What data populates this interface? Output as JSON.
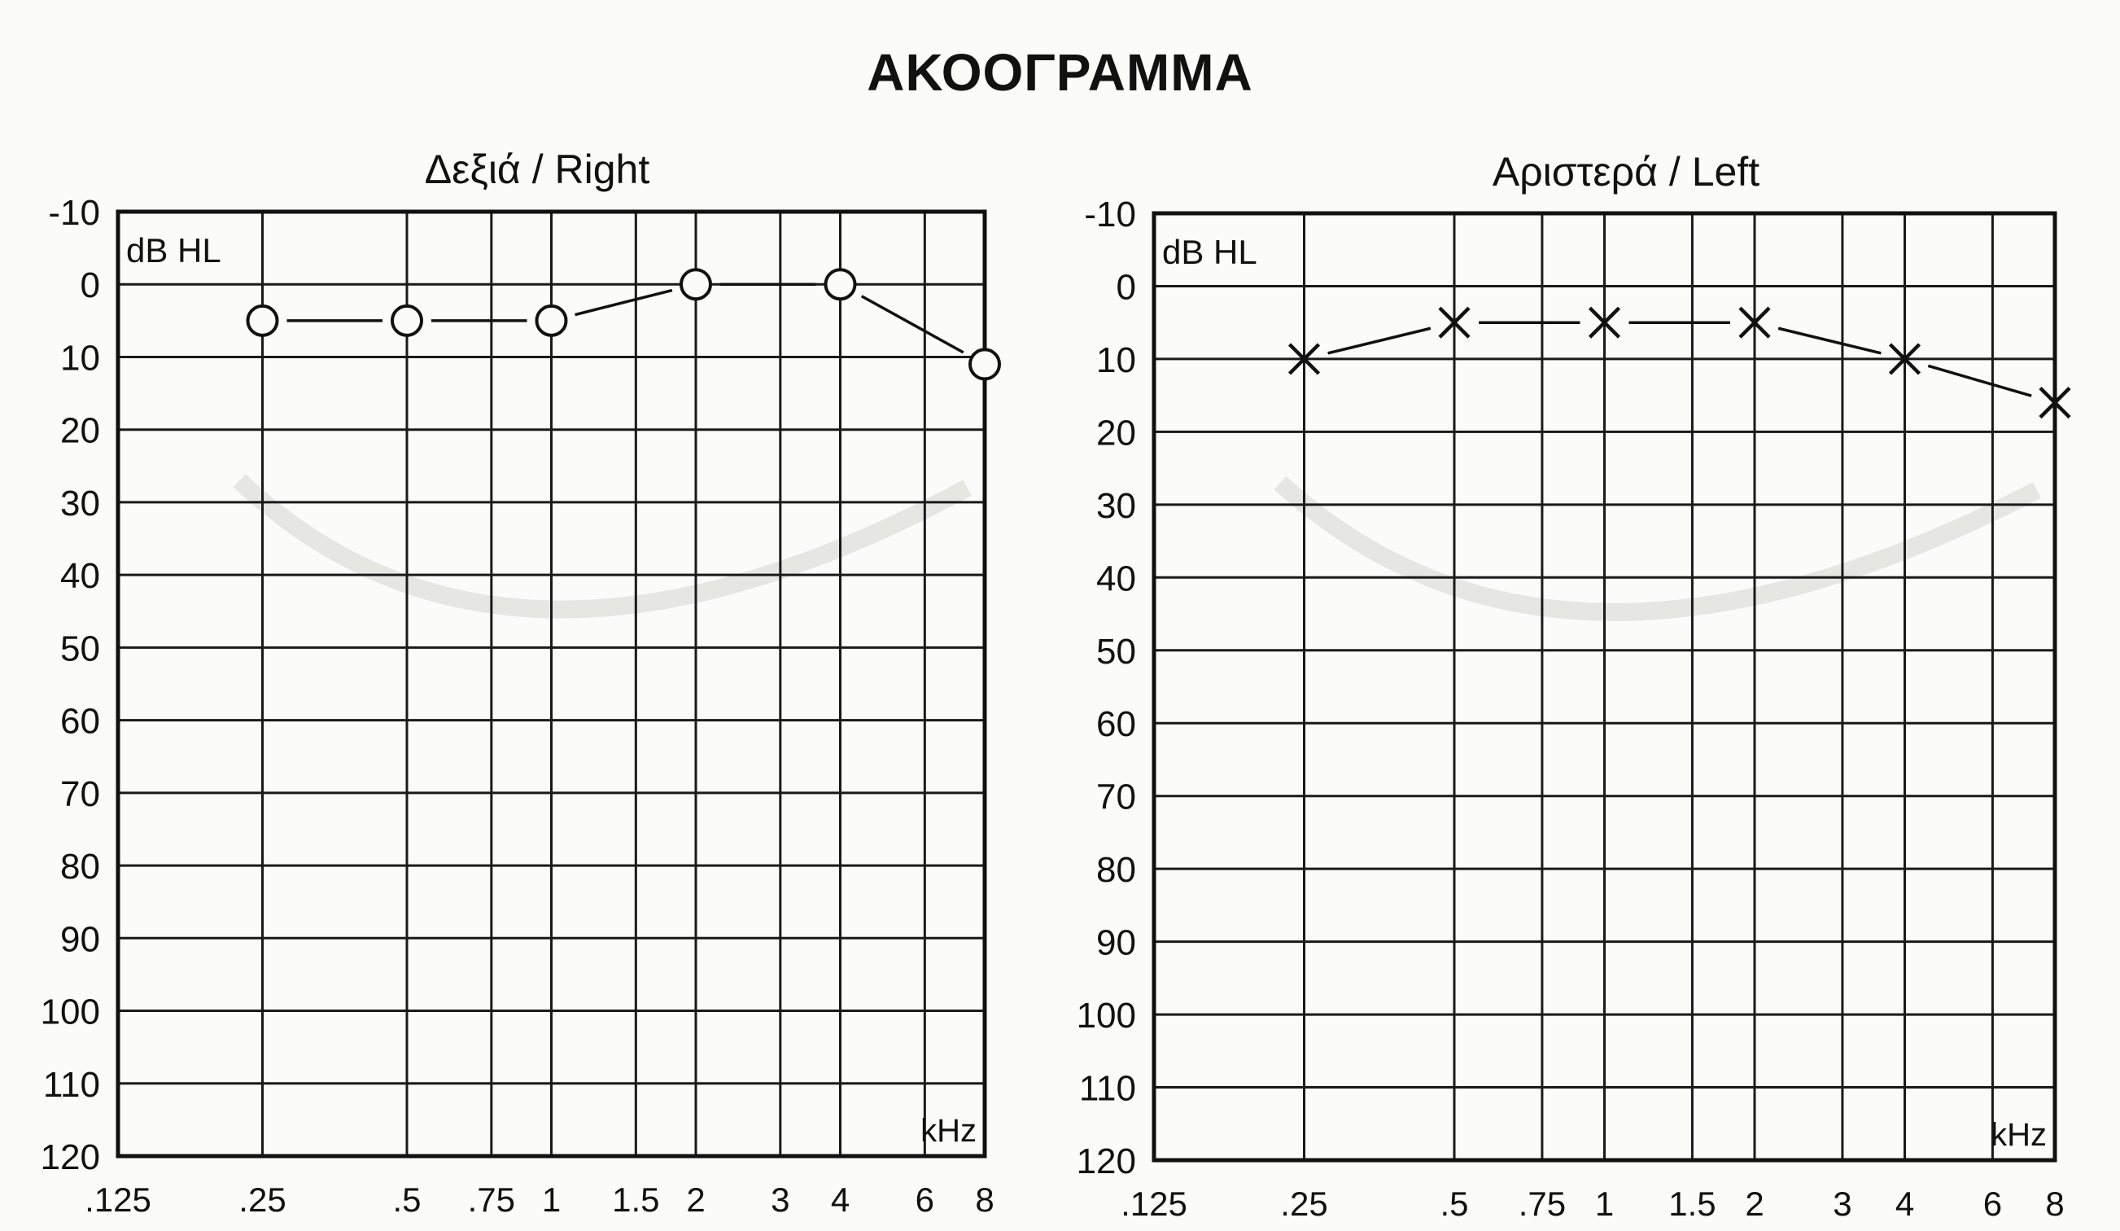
{
  "title": "ΑΚΟΟΓΡΑΜΜΑ",
  "chart_data": [
    {
      "type": "line",
      "title": "Δεξιά / Right",
      "ylabel": "dB HL",
      "xlabel": "kHz",
      "ylim": [
        -10,
        120
      ],
      "y_inverted": true,
      "y_ticks": [
        "-10",
        "0",
        "10",
        "20",
        "30",
        "40",
        "50",
        "60",
        "70",
        "80",
        "90",
        "100",
        "110",
        "120"
      ],
      "x_ticks": [
        ".125",
        ".25",
        ".5",
        ".75",
        "1",
        "1.5",
        "2",
        "3",
        "4",
        "6",
        "8"
      ],
      "grid": true,
      "series": [
        {
          "marker": "circle",
          "x": [
            ".25",
            ".5",
            "1",
            "2",
            "4",
            "8"
          ],
          "values": [
            5,
            5,
            5,
            0,
            0,
            11
          ]
        }
      ]
    },
    {
      "type": "line",
      "title": "Αριστερά / Left",
      "ylabel": "dB HL",
      "xlabel": "kHz",
      "ylim": [
        -10,
        120
      ],
      "y_inverted": true,
      "y_ticks": [
        "-10",
        "0",
        "10",
        "20",
        "30",
        "40",
        "50",
        "60",
        "70",
        "80",
        "90",
        "100",
        "110",
        "120"
      ],
      "x_ticks": [
        ".125",
        ".25",
        ".5",
        ".75",
        "1",
        "1.5",
        "2",
        "3",
        "4",
        "6",
        "8"
      ],
      "grid": true,
      "series": [
        {
          "marker": "cross",
          "x": [
            ".25",
            ".5",
            "1",
            "2",
            "4",
            "8"
          ],
          "values": [
            10,
            5,
            5,
            5,
            10,
            16
          ]
        }
      ]
    }
  ]
}
